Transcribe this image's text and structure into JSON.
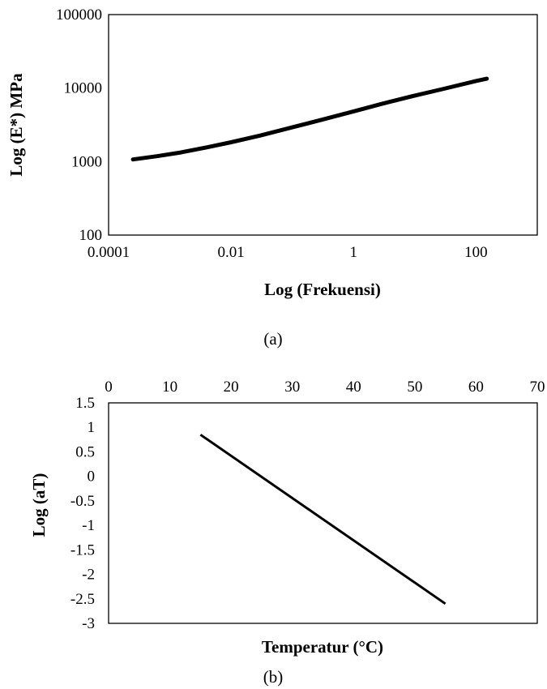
{
  "chart_data": [
    {
      "type": "line",
      "caption": "(a)",
      "xlabel": "Log (Frekuensi)",
      "ylabel": "Log (E*) MPa",
      "x_scale": "log",
      "y_scale": "log",
      "xlim": [
        0.0001,
        1000
      ],
      "ylim": [
        100,
        100000
      ],
      "x_tick_labels": [
        "0.0001",
        "0.01",
        "1",
        "100"
      ],
      "x_tick_values": [
        0.0001,
        0.01,
        1,
        100
      ],
      "y_tick_labels": [
        "100",
        "1000",
        "10000",
        "100000"
      ],
      "y_tick_values": [
        100,
        1000,
        10000,
        100000
      ],
      "grid": false,
      "series": [
        {
          "color": "#000000",
          "x": [
            0.00025,
            0.0006,
            0.0015,
            0.004,
            0.01,
            0.03,
            0.1,
            0.3,
            1,
            3,
            10,
            30,
            100,
            150
          ],
          "y": [
            1070,
            1180,
            1330,
            1560,
            1830,
            2260,
            2920,
            3700,
            4820,
            6150,
            7900,
            9800,
            12500,
            13400
          ]
        }
      ]
    },
    {
      "type": "line",
      "caption": "(b)",
      "xlabel": "Temperatur (°C)",
      "ylabel": "Log (aT)",
      "xlim": [
        0,
        70
      ],
      "ylim": [
        -3,
        1.5
      ],
      "x_axis_position": "top",
      "x_tick_labels": [
        "0",
        "10",
        "20",
        "30",
        "40",
        "50",
        "60",
        "70"
      ],
      "x_tick_values": [
        0,
        10,
        20,
        30,
        40,
        50,
        60,
        70
      ],
      "y_tick_labels": [
        "1.5",
        "1",
        "0.5",
        "0",
        "-0.5",
        "-1",
        "-1.5",
        "-2",
        "-2.5",
        "-3"
      ],
      "y_tick_values": [
        1.5,
        1,
        0.5,
        0,
        -0.5,
        -1,
        -1.5,
        -2,
        -2.5,
        -3
      ],
      "grid": false,
      "series": [
        {
          "color": "#000000",
          "x": [
            15,
            55
          ],
          "y": [
            0.85,
            -2.6
          ]
        }
      ]
    }
  ]
}
